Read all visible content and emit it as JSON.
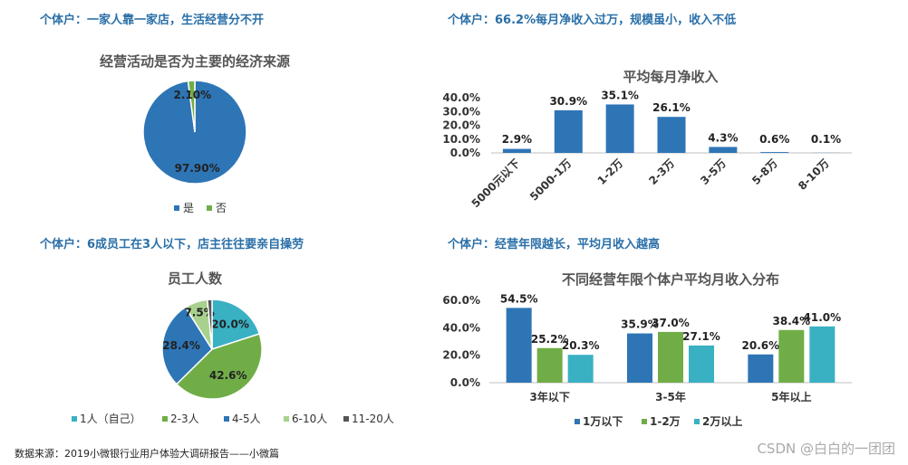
{
  "headings": {
    "top_left": "个体户：一家人靠一家店，生活经营分不开",
    "top_right": "个体户：66.2%每月净收入过万，规模虽小，收入不低",
    "bottom_left": "个体户：6成员工在3人以下，店主往往要亲自操劳",
    "bottom_right": "个体户：经营年限越长，平均月收入越高"
  },
  "footer": "数据来源：2019小微银行业用户体验大调研报告——小微篇",
  "watermark": "CSDN @白白的一团团",
  "colors": {
    "blue": "#2e75b6",
    "green": "#70ad47",
    "light_green": "#a9d18e",
    "teal": "#3ab0c3",
    "dark_green": "#3f8f74",
    "grey": "#555555"
  },
  "chart_data": [
    {
      "type": "pie",
      "title": "经营活动是否为主要的经济来源",
      "categories": [
        "是",
        "否"
      ],
      "values": [
        97.9,
        2.1
      ],
      "labels": [
        "97.90%",
        "2.10%"
      ],
      "legend": "bottom"
    },
    {
      "type": "bar",
      "title": "平均每月净收入",
      "categories": [
        "5000元以下",
        "5000-1万",
        "1-2万",
        "2-3万",
        "3-5万",
        "5-8万",
        "8-10万"
      ],
      "values": [
        2.9,
        30.9,
        35.1,
        26.1,
        4.3,
        0.6,
        0.1
      ],
      "labels": [
        "2.9%",
        "30.9%",
        "35.1%",
        "26.1%",
        "4.3%",
        "0.6%",
        "0.1%"
      ],
      "yticks": [
        "0.0%",
        "10.0%",
        "20.0%",
        "30.0%",
        "40.0%"
      ],
      "ylim": [
        0,
        40
      ]
    },
    {
      "type": "pie",
      "title": "员工人数",
      "categories": [
        "1人（自己）",
        "2-3人",
        "4-5人",
        "6-10人",
        "11-20人"
      ],
      "values": [
        20.0,
        42.6,
        28.4,
        7.5,
        1.5
      ],
      "labels": [
        "20.0%",
        "42.6%",
        "28.4%",
        "7.5%",
        ""
      ],
      "legend": "bottom"
    },
    {
      "type": "bar",
      "title": "不同经营年限个体户平均月收入分布",
      "categories": [
        "3年以下",
        "3-5年",
        "5年以上"
      ],
      "series": [
        {
          "name": "1万以下",
          "values": [
            54.5,
            35.9,
            20.6
          ],
          "labels": [
            "54.5%",
            "35.9%",
            "20.6%"
          ]
        },
        {
          "name": "1-2万",
          "values": [
            25.2,
            37.0,
            38.4
          ],
          "labels": [
            "25.2%",
            "37.0%",
            "38.4%"
          ]
        },
        {
          "name": "2万以上",
          "values": [
            20.3,
            27.1,
            41.0
          ],
          "labels": [
            "20.3%",
            "27.1%",
            "41.0%"
          ]
        }
      ],
      "yticks": [
        "0.0%",
        "20.0%",
        "40.0%",
        "60.0%"
      ],
      "ylim": [
        0,
        60
      ],
      "legend": "bottom"
    }
  ]
}
